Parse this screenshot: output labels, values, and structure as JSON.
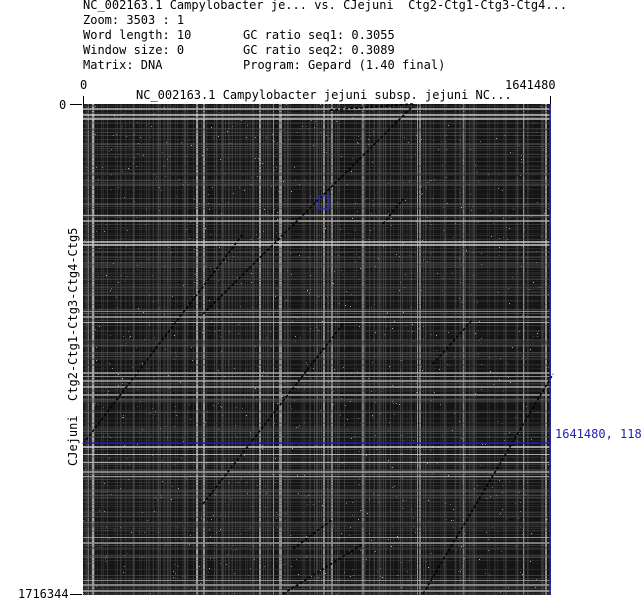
{
  "header": {
    "title": "NC_002163.1 Campylobacter je... vs. CJejuni  Ctg2-Ctg1-Ctg3-Ctg4...",
    "zoom": "Zoom: 3503 : 1",
    "word_length": "Word length: 10",
    "window_size": "Window size: 0",
    "matrix": "Matrix: DNA",
    "gc_seq1": "GC ratio seq1: 0.3055",
    "gc_seq2": "GC ratio seq2: 0.3089",
    "program": "Program: Gepard (1.40 final)"
  },
  "axes": {
    "x_start": "0",
    "x_end": "1641480",
    "x_title": "NC_002163.1 Campylobacter jejuni subsp. jejuni NC...",
    "y_start": "0",
    "y_end": "1716344",
    "y_title": "CJejuni  Ctg2-Ctg1-Ctg3-Ctg4-Ctg5"
  },
  "cursor": {
    "readout": "1641480, 118",
    "color": "#1f1fb0"
  },
  "colors": {
    "background": "#ffffff",
    "plot_base": "#141414",
    "selection_box": "#2a2ad0"
  }
}
